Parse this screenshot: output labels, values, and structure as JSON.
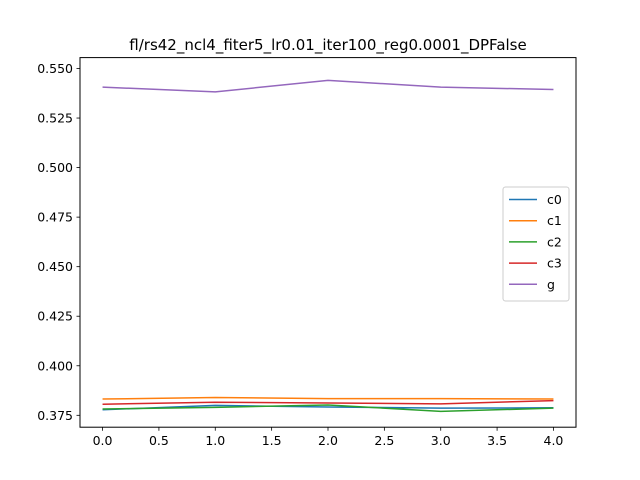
{
  "chart_data": {
    "type": "line",
    "title": "fl/rs42_ncl4_fiter5_lr0.01_iter100_reg0.0001_DPFalse",
    "xlabel": "",
    "ylabel": "",
    "x": [
      0,
      1,
      2,
      3,
      4
    ],
    "xlim": [
      -0.2,
      4.2
    ],
    "ylim": [
      0.369,
      0.5555
    ],
    "xticks": [
      0.0,
      0.5,
      1.0,
      1.5,
      2.0,
      2.5,
      3.0,
      3.5,
      4.0
    ],
    "xtick_labels": [
      "0.0",
      "0.5",
      "1.0",
      "1.5",
      "2.0",
      "2.5",
      "3.0",
      "3.5",
      "4.0"
    ],
    "yticks": [
      0.375,
      0.4,
      0.425,
      0.45,
      0.475,
      0.5,
      0.525,
      0.55
    ],
    "ytick_labels": [
      "0.375",
      "0.400",
      "0.425",
      "0.450",
      "0.475",
      "0.500",
      "0.525",
      "0.550"
    ],
    "grid": false,
    "legend_position": "center-right",
    "series": [
      {
        "name": "c0",
        "color": "#1f77b4",
        "values": [
          0.3778,
          0.38,
          0.3792,
          0.3786,
          0.3788
        ]
      },
      {
        "name": "c1",
        "color": "#ff7f0e",
        "values": [
          0.3832,
          0.384,
          0.3834,
          0.3834,
          0.3832
        ]
      },
      {
        "name": "c2",
        "color": "#2ca02c",
        "values": [
          0.3782,
          0.379,
          0.3802,
          0.377,
          0.3786
        ]
      },
      {
        "name": "c3",
        "color": "#d62728",
        "values": [
          0.3806,
          0.3816,
          0.3812,
          0.3808,
          0.3824
        ]
      },
      {
        "name": "g",
        "color": "#9467bd",
        "values": [
          0.5406,
          0.5382,
          0.544,
          0.5406,
          0.5394
        ]
      }
    ]
  }
}
